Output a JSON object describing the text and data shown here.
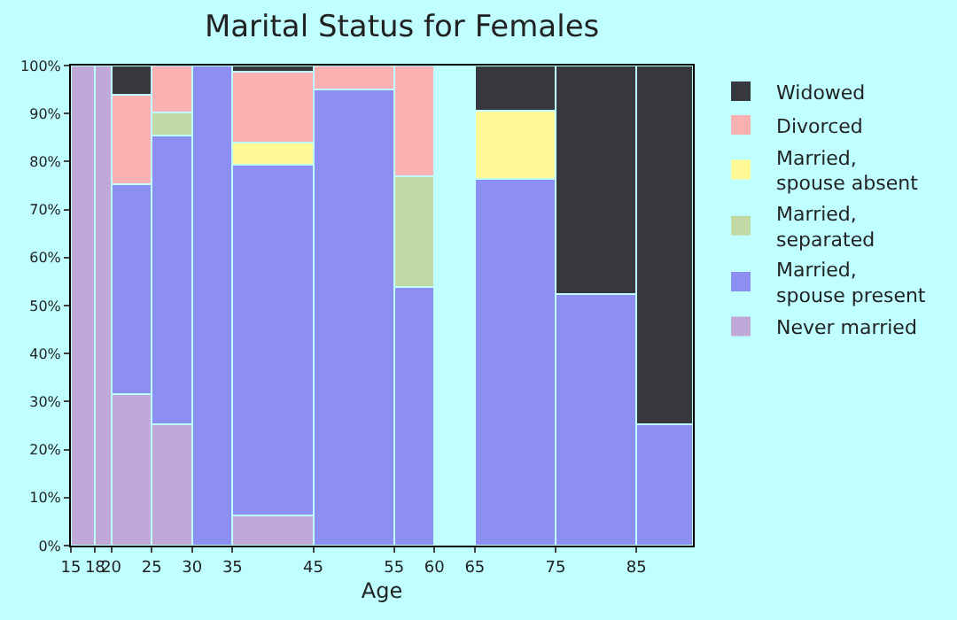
{
  "chart_data": {
    "type": "bar",
    "title": "Marital Status for Females",
    "xlabel": "Age",
    "stacked": true,
    "x": [
      16.5,
      19,
      22.5,
      27.5,
      32.5,
      40,
      50,
      57.5,
      62.5,
      70,
      80,
      88.5
    ],
    "xlim": [
      15,
      92
    ],
    "xticks": [
      15,
      18,
      20,
      25,
      30,
      35,
      45,
      55,
      60,
      65,
      75,
      85
    ],
    "ylim": [
      0,
      100
    ],
    "yticks": [
      {
        "value": 0,
        "label": "0%"
      },
      {
        "value": 10,
        "label": "10%"
      },
      {
        "value": 20,
        "label": "20%"
      },
      {
        "value": 30,
        "label": "30%"
      },
      {
        "value": 40,
        "label": "40%"
      },
      {
        "value": 50,
        "label": "50%"
      },
      {
        "value": 60,
        "label": "60%"
      },
      {
        "value": 70,
        "label": "70%"
      },
      {
        "value": 80,
        "label": "80%"
      },
      {
        "value": 90,
        "label": "90%"
      },
      {
        "value": 100,
        "label": "100%"
      }
    ],
    "grid": false,
    "legend": "right",
    "series": [
      {
        "name": "Never married",
        "color": "#c0a8d8",
        "values": [
          100,
          100,
          31.5,
          25.3,
          null,
          6.2,
          null,
          null,
          null,
          null,
          null,
          null
        ]
      },
      {
        "name": "Married,\nspouse present",
        "color": "#8d8ef2",
        "values": [
          null,
          null,
          43.7,
          60.2,
          100,
          73.1,
          95.0,
          53.9,
          null,
          76.3,
          52.4,
          25.3
        ]
      },
      {
        "name": "Married,\nseparated",
        "color": "#c2d9a5",
        "values": [
          null,
          null,
          null,
          4.8,
          null,
          null,
          null,
          23.1,
          null,
          null,
          null,
          null
        ]
      },
      {
        "name": "Married,\nspouse absent",
        "color": "#fff894",
        "values": [
          null,
          null,
          null,
          null,
          null,
          4.7,
          null,
          null,
          null,
          14.3,
          null,
          null
        ]
      },
      {
        "name": "Divorced",
        "color": "#f9b0b0",
        "values": [
          null,
          null,
          18.7,
          9.7,
          null,
          14.7,
          5.0,
          23.0,
          null,
          null,
          null,
          null
        ]
      },
      {
        "name": "Widowed",
        "color": "#37383d",
        "values": [
          null,
          null,
          6.1,
          null,
          null,
          1.3,
          null,
          null,
          null,
          9.4,
          47.6,
          74.7
        ]
      }
    ]
  }
}
